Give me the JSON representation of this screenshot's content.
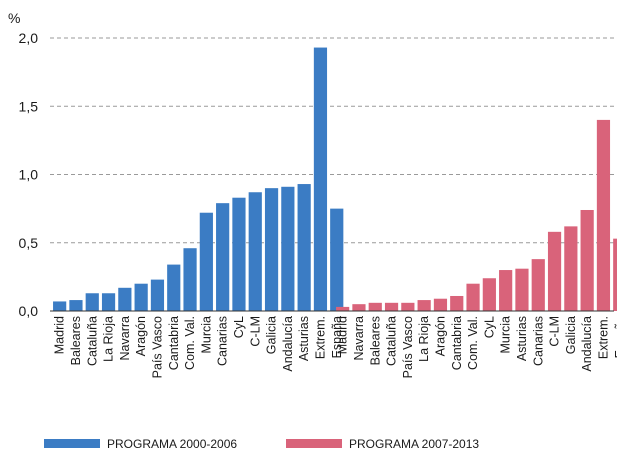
{
  "chart_data": {
    "type": "bar",
    "ylabel": "%",
    "ylim": [
      0,
      2.0
    ],
    "yticks": [
      "0,0",
      "0,5",
      "1,0",
      "1,5",
      "2,0"
    ],
    "ytick_values": [
      0,
      0.5,
      1.0,
      1.5,
      2.0
    ],
    "grid": true,
    "legend_position": "bottom",
    "series": [
      {
        "name": "PROGRAMA 2000-2006",
        "color": "#3b7cc4",
        "categories": [
          "Madrid",
          "Baleares",
          "Cataluña",
          "La Rioja",
          "Navarra",
          "Aragón",
          "País Vasco",
          "Cantabria",
          "Com. Val.",
          "Murcia",
          "Canarias",
          "CyL",
          "C-LM",
          "Galicia",
          "Andalucía",
          "Asturias",
          "Extrem.",
          "España"
        ],
        "values": [
          0.07,
          0.08,
          0.13,
          0.13,
          0.17,
          0.2,
          0.23,
          0.34,
          0.46,
          0.72,
          0.79,
          0.83,
          0.87,
          0.9,
          0.91,
          0.93,
          1.93,
          0.75
        ]
      },
      {
        "name": "PROGRAMA 2007-2013",
        "color": "#d9637a",
        "categories": [
          "Madrid",
          "Navarra",
          "Baleares",
          "Cataluña",
          "País Vasco",
          "La Rioja",
          "Aragón",
          "Cantabria",
          "Com. Val.",
          "CyL",
          "Murcia",
          "Asturias",
          "Canarias",
          "C-LM",
          "Galicia",
          "Andalucía",
          "Extrem.",
          "España"
        ],
        "values": [
          0.03,
          0.05,
          0.06,
          0.06,
          0.06,
          0.08,
          0.09,
          0.11,
          0.2,
          0.24,
          0.3,
          0.31,
          0.38,
          0.58,
          0.62,
          0.74,
          1.4,
          0.53
        ]
      }
    ]
  }
}
